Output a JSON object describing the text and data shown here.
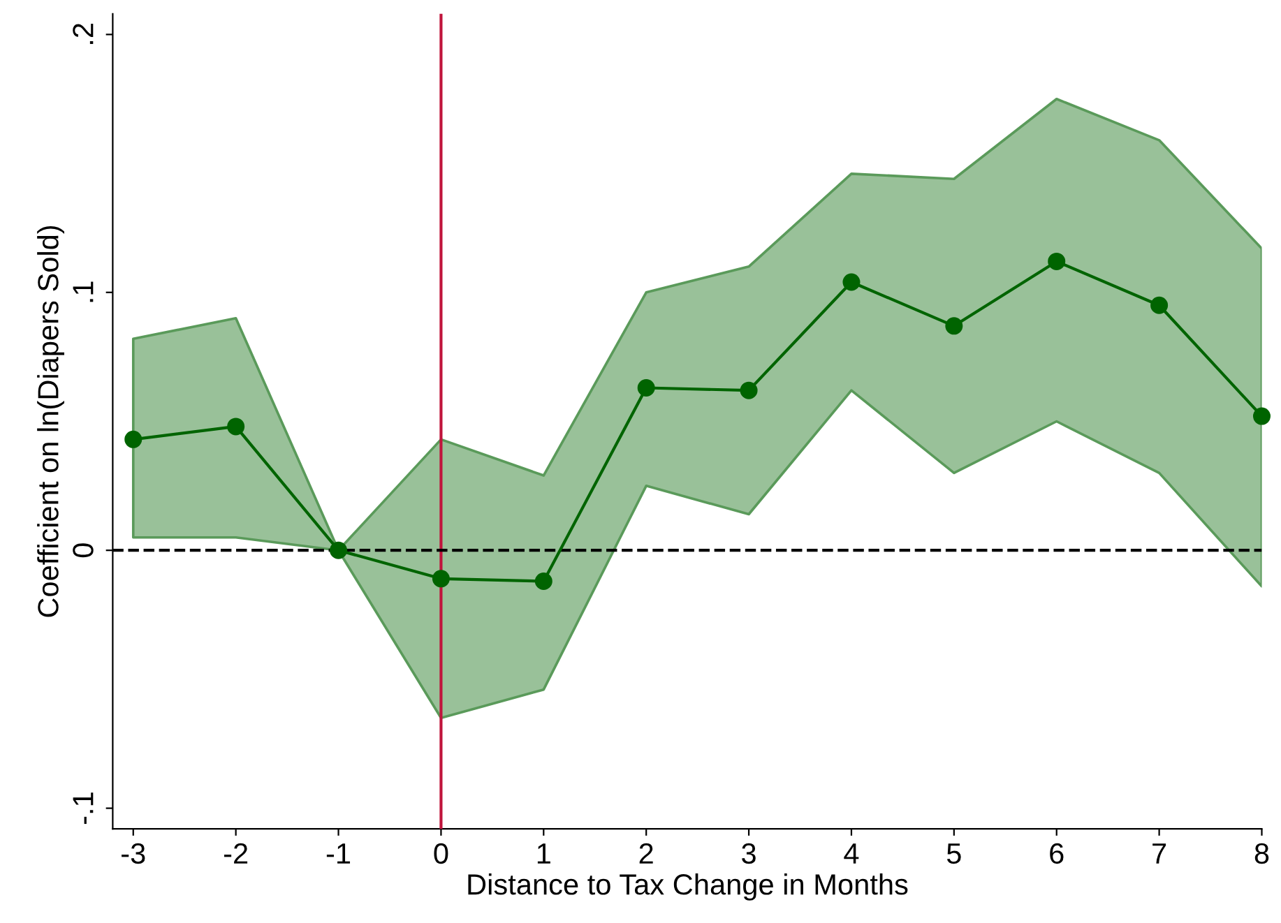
{
  "chart_data": {
    "type": "line",
    "xlabel": "Distance to Tax Change in Months",
    "ylabel": "Coefficient on ln(Diapers Sold)",
    "x": [
      -3,
      -2,
      -1,
      0,
      1,
      2,
      3,
      4,
      5,
      6,
      7,
      8
    ],
    "series": [
      {
        "color": "#006400",
        "values": [
          0.043,
          0.048,
          0,
          -0.011,
          -0.012,
          0.063,
          0.062,
          0.104,
          0.087,
          0.112,
          0.095,
          0.052
        ],
        "lower": [
          0.005,
          0.005,
          0,
          -0.065,
          -0.054,
          0.025,
          0.014,
          0.062,
          0.03,
          0.05,
          0.03,
          -0.014
        ],
        "upper": [
          0.082,
          0.09,
          0,
          0.043,
          0.029,
          0.1,
          0.11,
          0.146,
          0.144,
          0.175,
          0.159,
          0.117
        ]
      }
    ],
    "xlim": [
      -3.2,
      8
    ],
    "ylim": [
      -0.108,
      0.208
    ],
    "xticks": [
      -3,
      -2,
      -1,
      0,
      1,
      2,
      3,
      4,
      5,
      6,
      7,
      8
    ],
    "yticks": [
      {
        "value": -0.1,
        "label": "-.1"
      },
      {
        "value": 0,
        "label": "0"
      },
      {
        "value": 0.1,
        "label": ".1"
      },
      {
        "value": 0.2,
        "label": ".2"
      }
    ],
    "ref_lines": [
      {
        "axis": "x",
        "value": 0,
        "color": "#c0143c",
        "line_style": "solid"
      },
      {
        "axis": "y",
        "value": 0,
        "color": "#000000",
        "line_style": "dashed"
      }
    ],
    "marker": "circle",
    "line_style": "solid",
    "grid": false,
    "legend": false
  }
}
